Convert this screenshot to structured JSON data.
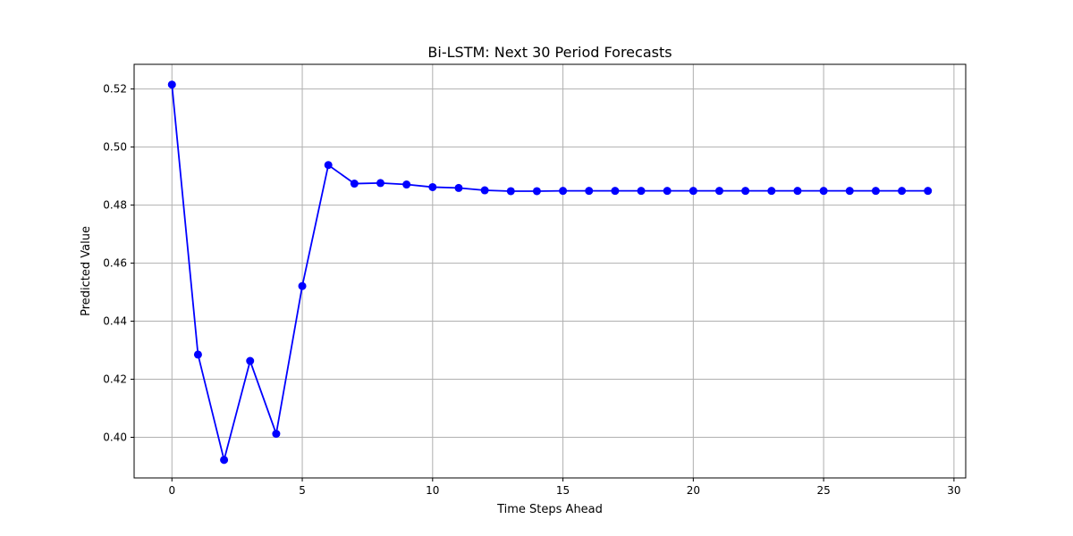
{
  "chart_data": {
    "type": "line",
    "title": "Bi-LSTM: Next 30 Period Forecasts",
    "xlabel": "Time Steps Ahead",
    "ylabel": "Predicted Value",
    "xlim": [
      -1.45,
      30.45
    ],
    "ylim": [
      0.386,
      0.5285
    ],
    "x_ticks": [
      0,
      5,
      10,
      15,
      20,
      25,
      30
    ],
    "x_tick_labels": [
      "0",
      "5",
      "10",
      "15",
      "20",
      "25",
      "30"
    ],
    "y_ticks": [
      0.4,
      0.42,
      0.44,
      0.46,
      0.48,
      0.5,
      0.52
    ],
    "y_tick_labels": [
      "0.40",
      "0.42",
      "0.44",
      "0.46",
      "0.48",
      "0.50",
      "0.52"
    ],
    "grid": true,
    "line_color": "#0000ff",
    "series": [
      {
        "x": [
          0,
          1,
          2,
          3,
          4,
          5,
          6,
          7,
          8,
          9,
          10,
          11,
          12,
          13,
          14,
          15,
          16,
          17,
          18,
          19,
          20,
          21,
          22,
          23,
          24,
          25,
          26,
          27,
          28,
          29
        ],
        "values": [
          0.5215,
          0.4285,
          0.3922,
          0.4263,
          0.4012,
          0.4521,
          0.4938,
          0.4874,
          0.4876,
          0.4871,
          0.4862,
          0.4859,
          0.4851,
          0.4848,
          0.4848,
          0.4849,
          0.4849,
          0.4849,
          0.4849,
          0.4849,
          0.4849,
          0.4849,
          0.4849,
          0.4849,
          0.4849,
          0.4849,
          0.4849,
          0.4849,
          0.4849,
          0.4849
        ]
      }
    ]
  }
}
